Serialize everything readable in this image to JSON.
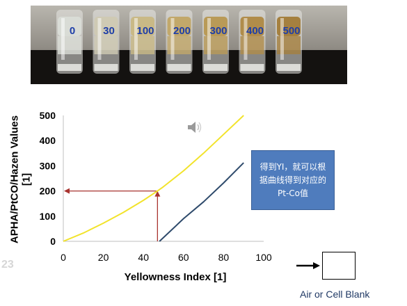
{
  "photo": {
    "vials": [
      "0",
      "30",
      "100",
      "200",
      "300",
      "400",
      "500"
    ],
    "vial_colors": [
      "#d9dcd6",
      "#cfcab4",
      "#c9b986",
      "#c2a86a",
      "#b99a57",
      "#b08c4a",
      "#a5803f"
    ]
  },
  "chart_data": {
    "type": "line",
    "xlabel": "Yellowness Index [1]",
    "ylabel_line1": "APHA/PtCO/Hazen Values",
    "ylabel_line2": "[1]",
    "xlim": [
      0,
      100
    ],
    "ylim": [
      0,
      500
    ],
    "xticks": [
      "0",
      "20",
      "40",
      "60",
      "80",
      "100"
    ],
    "yticks": [
      "0",
      "100",
      "200",
      "300",
      "400",
      "500"
    ],
    "series": [
      {
        "color": "#f2e32b",
        "x": [
          0,
          10,
          20,
          30,
          40,
          47,
          50,
          60,
          70,
          80,
          90
        ],
        "y": [
          0,
          33,
          72,
          115,
          163,
          200,
          217,
          280,
          350,
          425,
          500
        ]
      },
      {
        "color": "#2e4a6b",
        "x": [
          48,
          60,
          70,
          80,
          90
        ],
        "y": [
          0,
          90,
          157,
          232,
          312
        ]
      }
    ],
    "guide": {
      "color": "#a8332f",
      "x": 47,
      "y": 200
    }
  },
  "note": {
    "text": "得到YI，就可以根据曲线得到对应的Pt-Co值"
  },
  "blank": {
    "label": "Air or Cell Blank"
  },
  "icons": {
    "speaker": "speaker-icon",
    "arrow": "arrow-right-icon"
  },
  "slide_number": "23"
}
